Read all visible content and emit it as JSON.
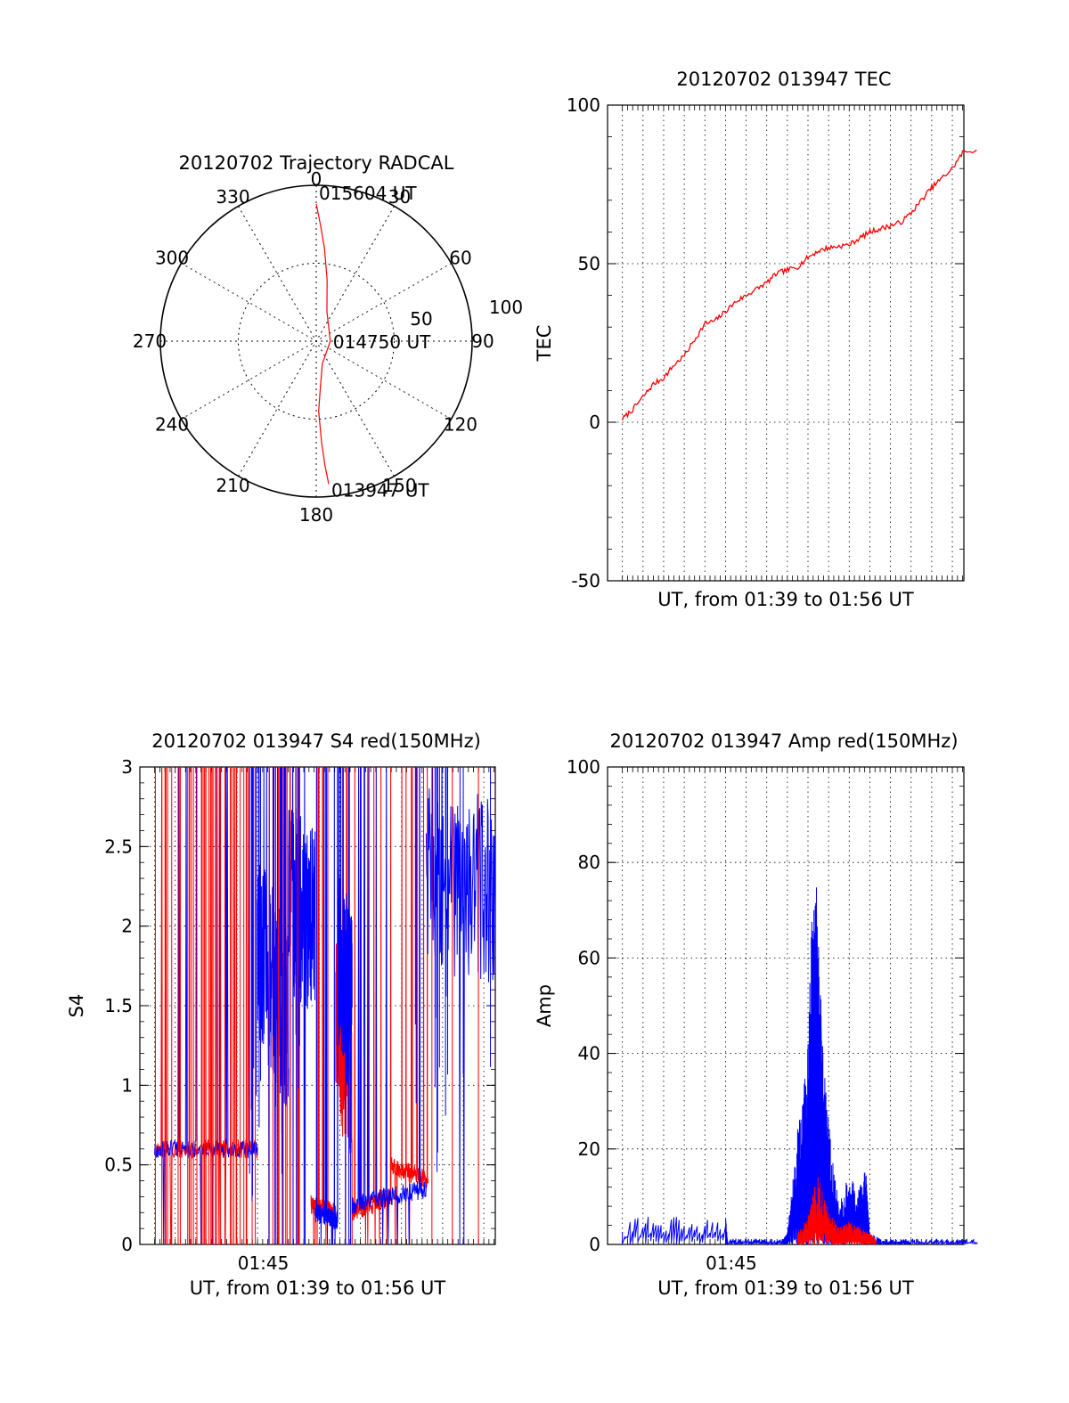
{
  "chart_data": [
    {
      "type": "polar",
      "title": "20120702 Trajectory RADCAL",
      "angle_labels": [
        "0",
        "30",
        "60",
        "90",
        "120",
        "150",
        "180",
        "210",
        "240",
        "270",
        "300",
        "330"
      ],
      "radius_labels": [
        "50",
        "100"
      ],
      "rlim": [
        0,
        100
      ],
      "grid": true,
      "series": [
        {
          "color": "#ff0000",
          "points": [
            {
              "az": 175,
              "r": 92
            },
            {
              "az": 176,
              "r": 80
            },
            {
              "az": 177,
              "r": 65
            },
            {
              "az": 178,
              "r": 45
            },
            {
              "az": 175,
              "r": 30
            },
            {
              "az": 165,
              "r": 15
            },
            {
              "az": 90,
              "r": 9
            },
            {
              "az": 20,
              "r": 20
            },
            {
              "az": 10,
              "r": 40
            },
            {
              "az": 5,
              "r": 60
            },
            {
              "az": 2,
              "r": 75
            },
            {
              "az": 0,
              "r": 88
            }
          ]
        }
      ],
      "annotations": [
        {
          "text": "015604 UT",
          "at": {
            "az": 0,
            "r": 88
          }
        },
        {
          "text": "014750 UT",
          "at": {
            "az": 90,
            "r": 9
          }
        },
        {
          "text": "013947 UT",
          "at": {
            "az": 175,
            "r": 92
          }
        }
      ]
    },
    {
      "type": "line",
      "title": "20120702 013947 TEC",
      "xlabel": "UT, from 01:39 to 01:56 UT",
      "ylabel": "TEC",
      "ylim": [
        -50,
        100
      ],
      "yticks": [
        "100",
        "50",
        "0",
        "-50"
      ],
      "xrange_min": [
        0,
        17.28
      ],
      "grid": true,
      "series": [
        {
          "color": "#ff0000",
          "x": [
            0,
            0.5,
            1,
            1.5,
            2,
            2.5,
            3,
            3.5,
            4,
            4.5,
            5,
            5.5,
            6,
            6.5,
            7,
            7.5,
            8,
            8.5,
            9,
            9.5,
            10,
            10.5,
            11,
            11.5,
            12,
            12.5,
            13,
            13.5,
            14,
            14.5,
            15,
            15.5,
            16,
            16.5,
            17.28
          ],
          "y": [
            1,
            4,
            8,
            12,
            14,
            18,
            21,
            26,
            31,
            32,
            35,
            38,
            40,
            42,
            44,
            47,
            48,
            49,
            52,
            54,
            55,
            55.5,
            56,
            58,
            60,
            61,
            62,
            63,
            66,
            70,
            74,
            77,
            80,
            85,
            86
          ]
        }
      ]
    },
    {
      "type": "line",
      "title": "20120702 013947 S4 red(150MHz)",
      "xlabel": "UT, from 01:39 to 01:56 UT",
      "ylabel": "S4",
      "ylim": [
        0,
        3
      ],
      "yticks": [
        "3",
        "2.5",
        "2",
        "1.5",
        "1",
        "0.5",
        "0"
      ],
      "xtick_labels": [
        "01:45"
      ],
      "xrange_min": [
        0,
        17.28
      ],
      "grid": true,
      "series": [
        {
          "name": "red",
          "color": "#ff0000",
          "segments": [
            {
              "x": [
                0,
                5
              ],
              "y": [
                0.6,
                0.6
              ]
            },
            {
              "x": [
                7.6,
                8.8
              ],
              "y": [
                0.25,
                0.2
              ]
            },
            {
              "x": [
                8.8,
                9.6
              ],
              "y": [
                1.4,
                1.1
              ]
            },
            {
              "x": [
                9.6,
                11.5
              ],
              "y": [
                0.2,
                0.3
              ]
            },
            {
              "x": [
                11.5,
                13.3
              ],
              "y": [
                0.5,
                0.4
              ]
            }
          ]
        },
        {
          "name": "blue",
          "color": "#0000ff",
          "segments": [
            {
              "x": [
                0,
                5
              ],
              "y": [
                0.6,
                0.6
              ]
            },
            {
              "x": [
                5,
                6.5
              ],
              "y": [
                1.9,
                1.4
              ]
            },
            {
              "x": [
                6.5,
                7.8
              ],
              "y": [
                2.2,
                2.0
              ]
            },
            {
              "x": [
                7.8,
                8.9
              ],
              "y": [
                0.2,
                0.15
              ]
            },
            {
              "x": [
                8.9,
                9.6
              ],
              "y": [
                1.8,
                1.5
              ]
            },
            {
              "x": [
                9.6,
                13.2
              ],
              "y": [
                0.25,
                0.35
              ]
            },
            {
              "x": [
                13.2,
                17.28
              ],
              "y": [
                2.3,
                2.2
              ]
            }
          ]
        }
      ]
    },
    {
      "type": "line",
      "title": "20120702 013947 Amp red(150MHz)",
      "xlabel": "UT, from 01:39 to 01:56 UT",
      "ylabel": "Amp",
      "ylim": [
        0,
        100
      ],
      "yticks": [
        "100",
        "80",
        "60",
        "40",
        "20",
        "0"
      ],
      "xtick_labels": [
        "01:45"
      ],
      "xrange_min": [
        0,
        17.28
      ],
      "grid": true,
      "series": [
        {
          "name": "blue",
          "color": "#0000ff",
          "x": [
            0,
            5,
            5.1,
            7.8,
            8.0,
            8.5,
            8.8,
            9.0,
            9.2,
            9.4,
            9.6,
            9.8,
            10.1,
            10.5,
            11.0,
            11.5,
            11.8,
            12.0,
            12.5,
            14,
            17.28
          ],
          "y": [
            5,
            5,
            1,
            1,
            2,
            20,
            28,
            35,
            60,
            66,
            45,
            30,
            18,
            8,
            12,
            10,
            14,
            2,
            1,
            1,
            1
          ]
        },
        {
          "name": "red",
          "color": "#ff0000",
          "x": [
            8.5,
            9.0,
            9.5,
            10.0,
            10.5,
            11.0,
            11.5,
            12.0,
            12.3
          ],
          "y": [
            2,
            5,
            13,
            6,
            3,
            4,
            3,
            2,
            1
          ]
        }
      ]
    }
  ]
}
